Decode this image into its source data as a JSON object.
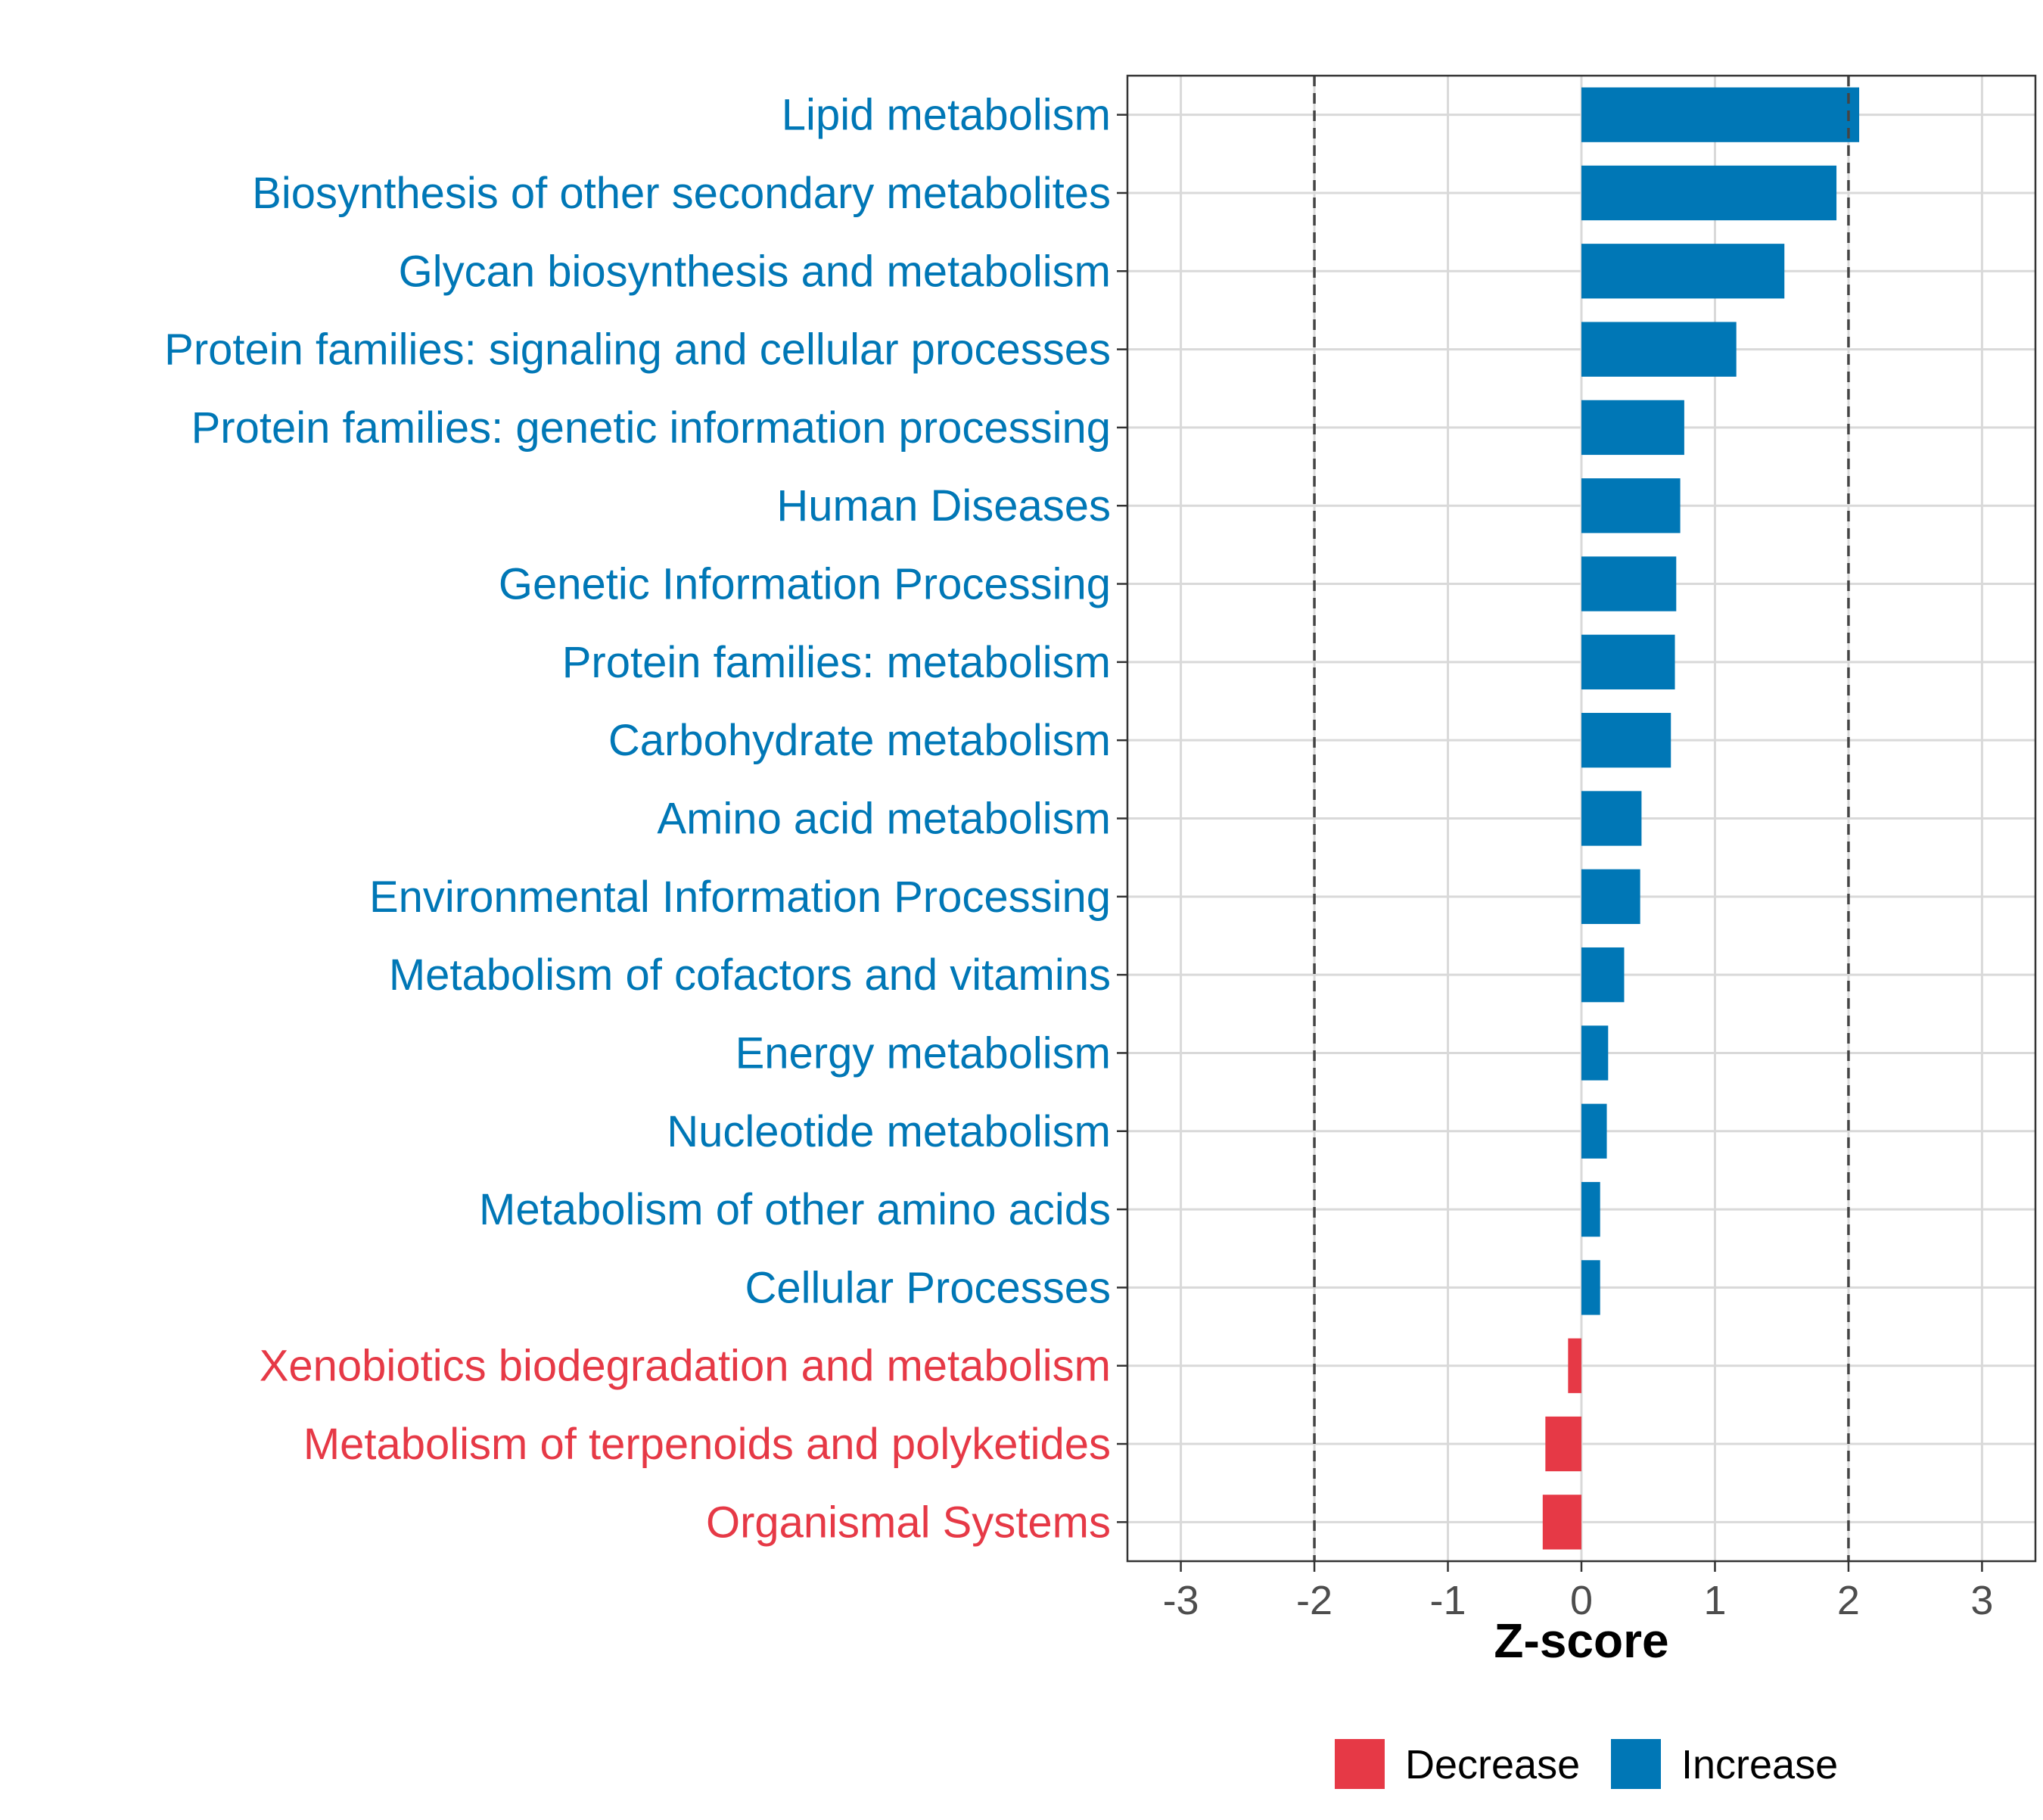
{
  "chart_data": {
    "type": "bar",
    "orientation": "horizontal",
    "title": "",
    "xlabel": "Z-score",
    "ylabel": "",
    "xlim": [
      -3.4,
      3.4
    ],
    "xticks": [
      -3,
      -2,
      -1,
      0,
      1,
      2,
      3
    ],
    "xtick_labels": [
      "-3",
      "-2",
      "-1",
      "0",
      "1",
      "2",
      "3"
    ],
    "reference_lines": [
      -2,
      2
    ],
    "grid": true,
    "legend_position": "bottom",
    "colors": {
      "Decrease": "#E63946",
      "Increase": "#0077B6"
    },
    "legend": [
      {
        "label": "Decrease",
        "color": "#E63946"
      },
      {
        "label": "Increase",
        "color": "#0077B6"
      }
    ],
    "categories": [
      "Lipid metabolism",
      "Biosynthesis of other secondary metabolites",
      "Glycan biosynthesis and metabolism",
      "Protein families: signaling and cellular processes",
      "Protein families: genetic information processing",
      "Human Diseases",
      "Genetic Information Processing",
      "Protein families: metabolism",
      "Carbohydrate metabolism",
      "Amino acid metabolism",
      "Environmental Information Processing",
      "Metabolism of cofactors and vitamins",
      "Energy metabolism",
      "Nucleotide metabolism",
      "Metabolism of other amino acids",
      "Cellular Processes",
      "Xenobiotics biodegradation and metabolism",
      "Metabolism of terpenoids and polyketides",
      "Organismal Systems"
    ],
    "values": [
      2.08,
      1.91,
      1.52,
      1.16,
      0.77,
      0.74,
      0.71,
      0.7,
      0.67,
      0.45,
      0.44,
      0.32,
      0.2,
      0.19,
      0.14,
      0.14,
      -0.1,
      -0.27,
      -0.29
    ],
    "groups": [
      "Increase",
      "Increase",
      "Increase",
      "Increase",
      "Increase",
      "Increase",
      "Increase",
      "Increase",
      "Increase",
      "Increase",
      "Increase",
      "Increase",
      "Increase",
      "Increase",
      "Increase",
      "Increase",
      "Decrease",
      "Decrease",
      "Decrease"
    ]
  }
}
